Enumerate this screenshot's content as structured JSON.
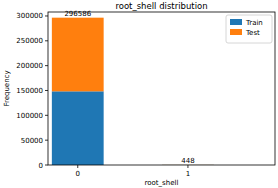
{
  "chart_data": {
    "type": "bar",
    "title": "root_shell distribution",
    "x_label": "root_shell",
    "y_label": "Frequency",
    "categories": [
      "0",
      "1"
    ],
    "series": [
      {
        "name": "Train",
        "color": "#1f77b4",
        "values": [
          148300,
          224
        ]
      },
      {
        "name": "Test",
        "color": "#ff7f0e",
        "values": [
          148286,
          224
        ]
      }
    ],
    "totals": [
      296586,
      448
    ],
    "stacked": true,
    "legend": "upper right",
    "grid": false,
    "ylim": [
      0,
      308000
    ],
    "yticks": [
      0,
      50000,
      100000,
      150000,
      200000,
      250000,
      300000
    ]
  }
}
